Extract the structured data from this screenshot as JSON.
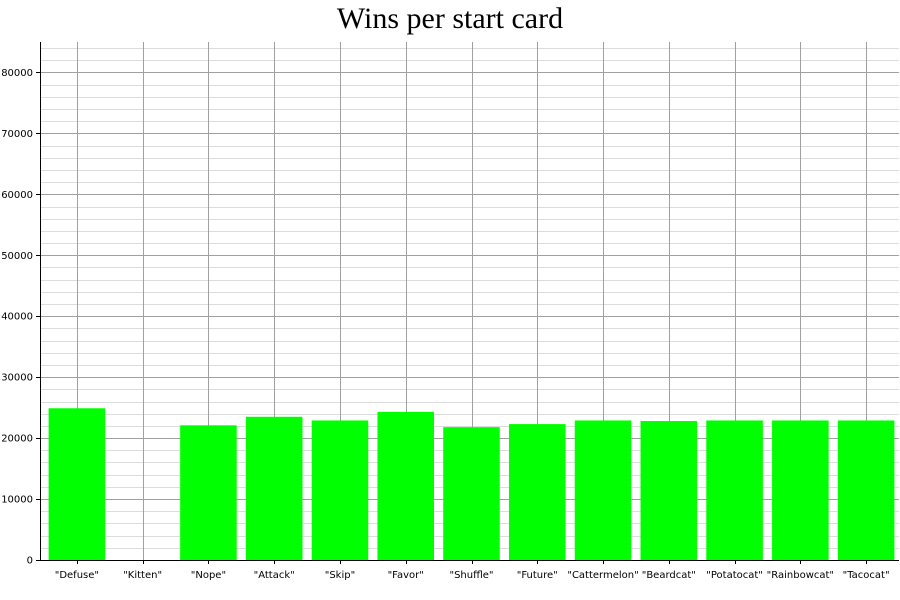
{
  "chart_data": {
    "type": "bar",
    "title": "Wins per start card",
    "xlabel": "",
    "ylabel": "",
    "categories": [
      "\"Defuse\"",
      "\"Kitten\"",
      "\"Nope\"",
      "\"Attack\"",
      "\"Skip\"",
      "\"Favor\"",
      "\"Shuffle\"",
      "\"Future\"",
      "\"Cattermelon\"",
      "\"Beardcat\"",
      "\"Potatocat\"",
      "\"Rainbowcat\"",
      "\"Tacocat\""
    ],
    "values": [
      24900,
      0,
      22100,
      23500,
      22900,
      24300,
      21800,
      22300,
      22900,
      22800,
      22900,
      22900,
      22900
    ],
    "ylim": [
      0,
      85000
    ],
    "yticks": [
      0,
      10000,
      20000,
      30000,
      40000,
      50000,
      60000,
      70000,
      80000
    ],
    "minor_grid_step": 2000,
    "grid": true,
    "bar_color": "#00ff00"
  }
}
